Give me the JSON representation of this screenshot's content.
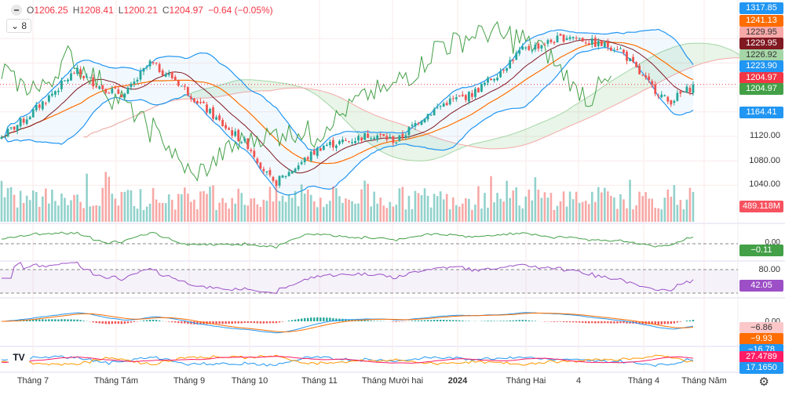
{
  "header": {
    "open_label": "O",
    "open": "1206.25",
    "high_label": "H",
    "high": "1208.41",
    "low_label": "L",
    "low": "1200.21",
    "close_label": "C",
    "close": "1204.97",
    "change": "−0.64 (−0.05%)",
    "indicators_toggle": "8"
  },
  "price_axis": {
    "ticks": [
      "1120.00",
      "1080.00",
      "1040.00"
    ],
    "tags": [
      {
        "value": "1317.85",
        "bg": "#2196f3",
        "fg": "#ffffff"
      },
      {
        "value": "1241.13",
        "bg": "#ff6d00",
        "fg": "#ffffff"
      },
      {
        "value": "1229.95",
        "bg": "#f7a9a9",
        "fg": "#333333"
      },
      {
        "value": "1229.95",
        "bg": "#801922",
        "fg": "#ffffff"
      },
      {
        "value": "1226.92",
        "bg": "#a5d6a7",
        "fg": "#333333"
      },
      {
        "value": "1223.90",
        "bg": "#2196f3",
        "fg": "#ffffff"
      },
      {
        "value": "1204.97",
        "bg": "#f23645",
        "fg": "#ffffff"
      },
      {
        "value": "1204.97",
        "bg": "#43a047",
        "fg": "#ffffff"
      },
      {
        "value": "1164.41",
        "bg": "#2196f3",
        "fg": "#ffffff"
      }
    ],
    "volume": {
      "value": "489.118M",
      "bg": "#f7525f"
    }
  },
  "panes": {
    "momentum": {
      "zero": "0.00",
      "value": "−0.11",
      "bg": "#43a047"
    },
    "rsi": {
      "upper": "80.00",
      "value": "42.05",
      "bg": "#9c4fc6"
    },
    "macd": {
      "zero": "0.00",
      "hist": "−6.86",
      "hist_bg": "#fbc7c9",
      "signal": "−9.93",
      "signal_bg": "#ff6d00",
      "macd": "−16.78",
      "macd_bg": "#2196f3"
    },
    "dmi": {
      "adx": "27.4789",
      "adx_bg": "#ff1a66",
      "plus": "17.1650",
      "plus_bg": "#2196f3"
    }
  },
  "time_axis": [
    "Tháng 7",
    "Tháng Tám",
    "Tháng 9",
    "Tháng 10",
    "Tháng 11",
    "Tháng Mười hai",
    "2024",
    "Tháng Hai",
    "4",
    "Tháng 4",
    "Tháng Năm"
  ],
  "chart_data": {
    "type": "candlestick",
    "close_path": [
      1119,
      1150,
      1188,
      1227,
      1201,
      1188,
      1240,
      1214,
      1175,
      1137,
      1105,
      1041,
      1073,
      1105,
      1112,
      1124,
      1112,
      1150,
      1176,
      1188,
      1220,
      1259,
      1272,
      1285,
      1272,
      1265,
      1214,
      1176,
      1202
    ],
    "last_close": 1204.97,
    "ylim": [
      1010,
      1330
    ],
    "colors": {
      "up": "#26a69a",
      "down": "#ef5350"
    }
  }
}
